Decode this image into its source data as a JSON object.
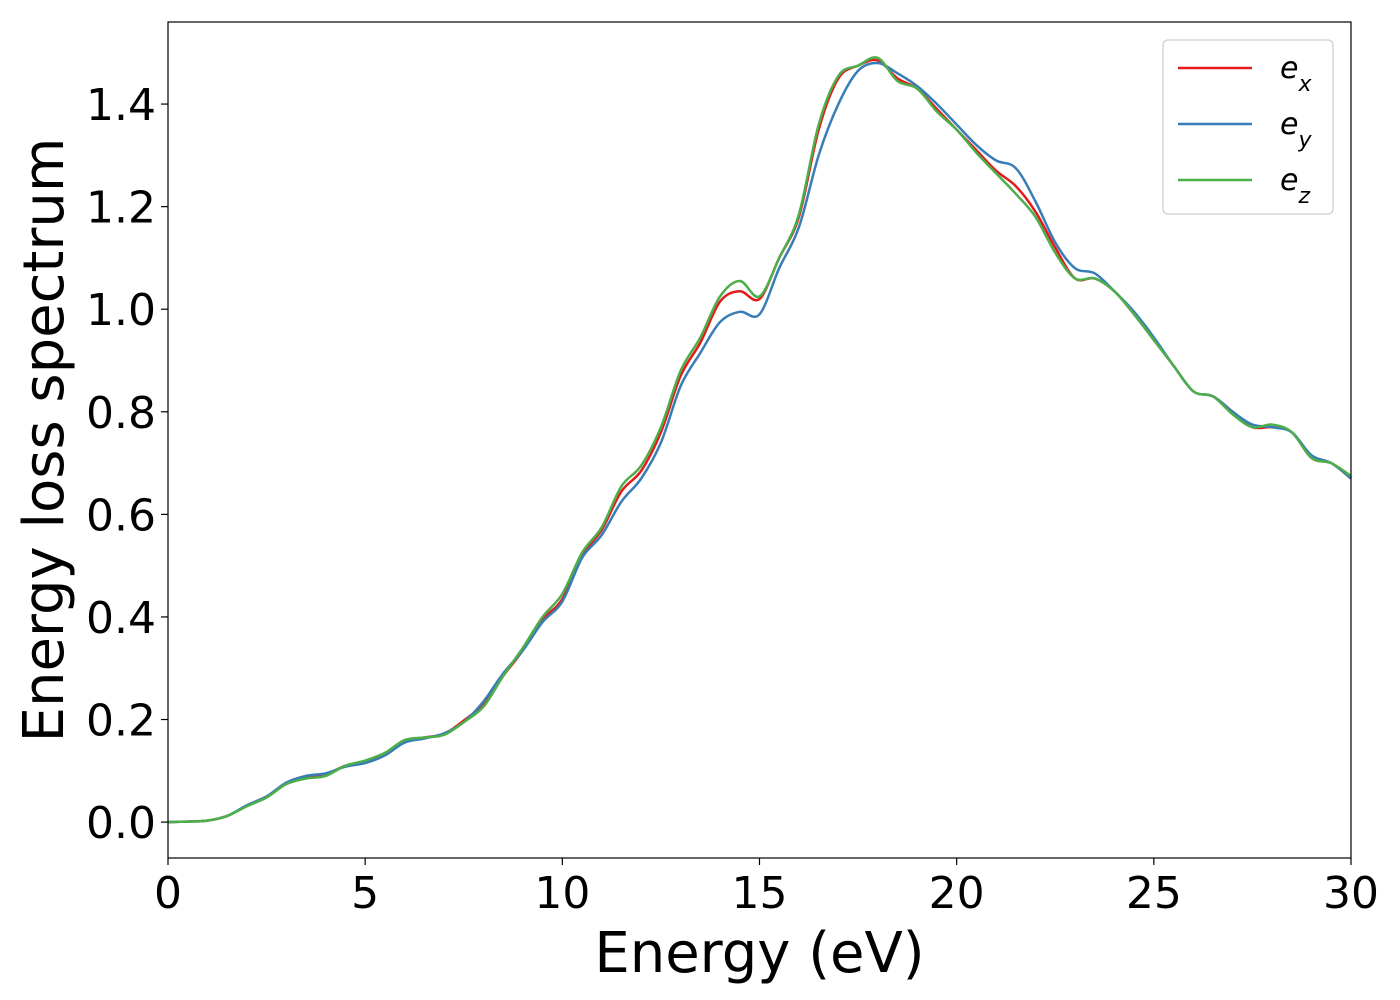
{
  "chart_data": {
    "type": "line",
    "xlabel": "Energy (eV)",
    "ylabel": "Energy loss spectrum",
    "xlim": [
      0,
      30
    ],
    "ylim": [
      -0.07,
      1.56
    ],
    "xticks": [
      0,
      5,
      10,
      15,
      20,
      25,
      30
    ],
    "xtick_labels": [
      "0",
      "5",
      "10",
      "15",
      "20",
      "25",
      "30"
    ],
    "yticks": [
      0.0,
      0.2,
      0.4,
      0.6,
      0.8,
      1.0,
      1.2,
      1.4
    ],
    "ytick_labels": [
      "0.0",
      "0.2",
      "0.4",
      "0.6",
      "0.8",
      "1.0",
      "1.2",
      "1.4"
    ],
    "grid": false,
    "legend_position": "top-right",
    "x": [
      0,
      0.5,
      1,
      1.5,
      2,
      2.5,
      3,
      3.5,
      4,
      4.5,
      5,
      5.5,
      6,
      6.5,
      7,
      7.5,
      8,
      8.5,
      9,
      9.5,
      10,
      10.5,
      11,
      11.5,
      12,
      12.5,
      13,
      13.5,
      14,
      14.5,
      15,
      15.5,
      16,
      16.5,
      17,
      17.5,
      18,
      18.5,
      19,
      19.5,
      20,
      20.5,
      21,
      21.5,
      22,
      22.5,
      23,
      23.5,
      24,
      24.5,
      25,
      25.5,
      26,
      26.5,
      27,
      27.5,
      28,
      28.5,
      29,
      29.5,
      30
    ],
    "series": [
      {
        "name_base": "e",
        "name_sub": "x",
        "color": "#e41a1c",
        "values": [
          0.0,
          0.001,
          0.003,
          0.012,
          0.032,
          0.05,
          0.075,
          0.088,
          0.093,
          0.11,
          0.118,
          0.132,
          0.158,
          0.165,
          0.172,
          0.198,
          0.23,
          0.285,
          0.335,
          0.395,
          0.435,
          0.52,
          0.57,
          0.645,
          0.685,
          0.76,
          0.87,
          0.935,
          1.015,
          1.035,
          1.02,
          1.1,
          1.18,
          1.35,
          1.45,
          1.475,
          1.485,
          1.45,
          1.43,
          1.39,
          1.35,
          1.31,
          1.27,
          1.24,
          1.19,
          1.12,
          1.06,
          1.06,
          1.035,
          0.99,
          0.94,
          0.89,
          0.84,
          0.83,
          0.8,
          0.77,
          0.77,
          0.76,
          0.71,
          0.7,
          0.67
        ]
      },
      {
        "name_base": "e",
        "name_sub": "y",
        "color": "#377eb8",
        "values": [
          0.0,
          0.001,
          0.003,
          0.012,
          0.033,
          0.05,
          0.077,
          0.09,
          0.095,
          0.108,
          0.115,
          0.13,
          0.155,
          0.163,
          0.173,
          0.195,
          0.235,
          0.29,
          0.335,
          0.39,
          0.43,
          0.515,
          0.56,
          0.625,
          0.67,
          0.74,
          0.85,
          0.915,
          0.975,
          0.995,
          0.99,
          1.08,
          1.16,
          1.3,
          1.4,
          1.465,
          1.48,
          1.46,
          1.435,
          1.4,
          1.36,
          1.32,
          1.29,
          1.275,
          1.21,
          1.13,
          1.08,
          1.07,
          1.035,
          0.995,
          0.945,
          0.89,
          0.84,
          0.83,
          0.8,
          0.775,
          0.77,
          0.76,
          0.715,
          0.7,
          0.67
        ]
      },
      {
        "name_base": "e",
        "name_sub": "z",
        "color": "#4daf4a",
        "values": [
          0.0,
          0.001,
          0.003,
          0.012,
          0.031,
          0.048,
          0.074,
          0.085,
          0.09,
          0.11,
          0.12,
          0.135,
          0.16,
          0.165,
          0.17,
          0.195,
          0.225,
          0.285,
          0.34,
          0.4,
          0.445,
          0.525,
          0.575,
          0.655,
          0.695,
          0.77,
          0.88,
          0.945,
          1.025,
          1.055,
          1.025,
          1.1,
          1.185,
          1.36,
          1.455,
          1.475,
          1.49,
          1.445,
          1.43,
          1.385,
          1.35,
          1.305,
          1.265,
          1.225,
          1.18,
          1.11,
          1.06,
          1.06,
          1.035,
          0.99,
          0.94,
          0.89,
          0.84,
          0.83,
          0.795,
          0.77,
          0.775,
          0.76,
          0.71,
          0.7,
          0.675
        ]
      }
    ]
  }
}
